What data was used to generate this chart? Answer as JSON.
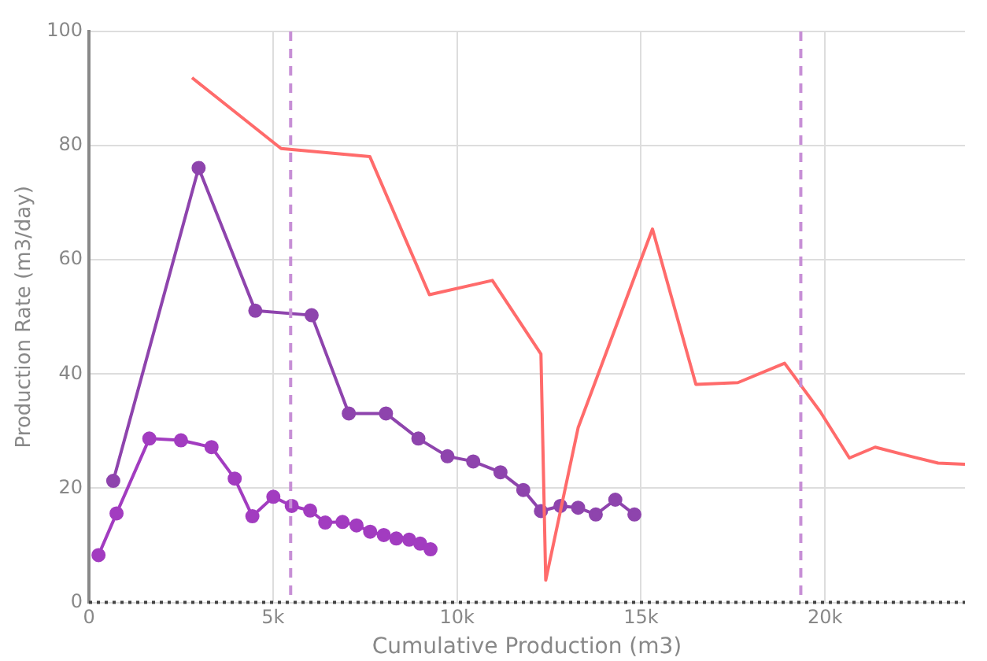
{
  "chart_data": {
    "type": "line",
    "xlabel": "Cumulative Production (m3)",
    "ylabel": "Production Rate (m3/day)",
    "xlim": [
      0,
      23800
    ],
    "ylim": [
      0,
      100
    ],
    "xticks": [
      {
        "value": 0,
        "label": "0"
      },
      {
        "value": 5000,
        "label": "5k"
      },
      {
        "value": 10000,
        "label": "10k"
      },
      {
        "value": 15000,
        "label": "15k"
      },
      {
        "value": 20000,
        "label": "20k"
      }
    ],
    "yticks": [
      0,
      20,
      40,
      60,
      80,
      100
    ],
    "grid": true,
    "legend": false,
    "ref_lines": [
      {
        "axis": "x",
        "value": 5480,
        "color": "#c78fd6",
        "line_style": "dashed"
      },
      {
        "axis": "x",
        "value": 19340,
        "color": "#c78fd6",
        "line_style": "dashed"
      },
      {
        "axis": "y",
        "value": 0,
        "color": "#444444",
        "line_style": "dotted"
      }
    ],
    "series": [
      {
        "color": "#ff6b6b",
        "marker": "none",
        "x": [
          2800,
          5220,
          7630,
          9250,
          10960,
          12280,
          12410,
          13290,
          15310,
          16490,
          17630,
          18900,
          19870,
          20660,
          21360,
          22320,
          23070,
          23800
        ],
        "values": [
          91.9,
          79.5,
          78.1,
          53.9,
          56.4,
          43.5,
          3.9,
          30.6,
          65.4,
          38.2,
          38.5,
          41.9,
          33.4,
          25.3,
          27.2,
          25.6,
          24.4,
          24.2
        ]
      },
      {
        "color": "#8e44ad",
        "marker": "circle",
        "x": [
          660,
          2980,
          4520,
          6050,
          7060,
          8070,
          8950,
          9740,
          10440,
          11180,
          11800,
          12280,
          12810,
          13290,
          13770,
          14300,
          14820
        ],
        "values": [
          21.3,
          76.1,
          51.1,
          50.3,
          33.1,
          33.1,
          28.7,
          25.6,
          24.7,
          22.8,
          19.7,
          16.0,
          16.9,
          16.6,
          15.4,
          18.0,
          15.4
        ]
      },
      {
        "color": "#a23cc0",
        "marker": "circle",
        "x": [
          260,
          750,
          1640,
          2500,
          3330,
          3960,
          4440,
          5010,
          5510,
          6010,
          6420,
          6890,
          7270,
          7640,
          8010,
          8350,
          8700,
          9000,
          9280
        ],
        "values": [
          8.3,
          15.6,
          28.7,
          28.4,
          27.2,
          21.7,
          15.1,
          18.5,
          16.9,
          16.1,
          14.0,
          14.1,
          13.5,
          12.4,
          11.8,
          11.2,
          11.0,
          10.3,
          9.3
        ]
      }
    ]
  }
}
